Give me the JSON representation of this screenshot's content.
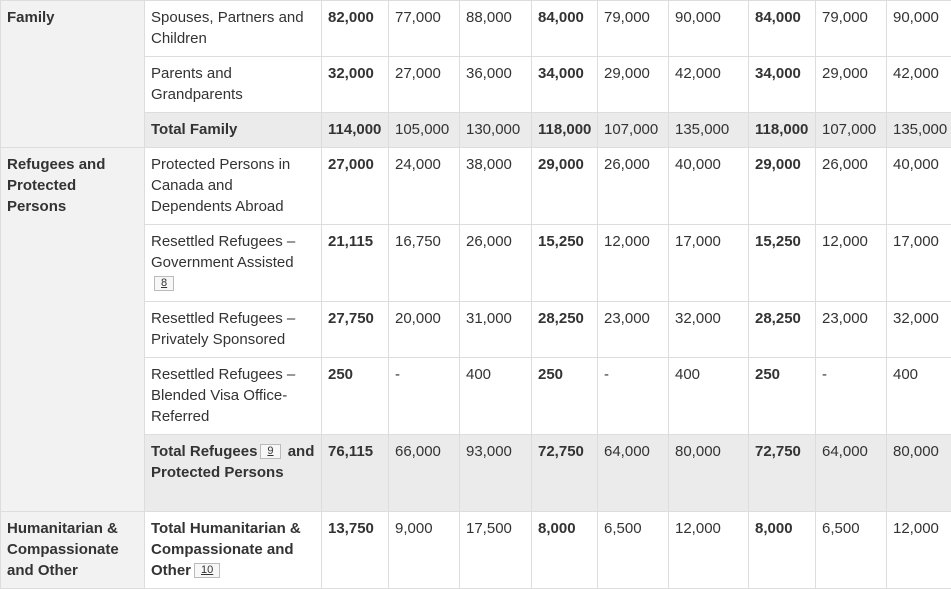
{
  "categories": {
    "family": "Family",
    "refugees": "Refugees and Protected Persons",
    "humanitarian": "Humanitarian & Compassionate and Other"
  },
  "rows": [
    {
      "label": "Spouses, Partners and Children",
      "values": [
        "82,000",
        "77,000",
        "88,000",
        "84,000",
        "79,000",
        "90,000",
        "84,000",
        "79,000",
        "90,000"
      ]
    },
    {
      "label": "Parents and Grandparents",
      "values": [
        "32,000",
        "27,000",
        "36,000",
        "34,000",
        "29,000",
        "42,000",
        "34,000",
        "29,000",
        "42,000"
      ]
    },
    {
      "label": "Total Family",
      "values": [
        "114,000",
        "105,000",
        "130,000",
        "118,000",
        "107,000",
        "135,000",
        "118,000",
        "107,000",
        "135,000"
      ]
    },
    {
      "label": "Protected Persons in Canada and Dependents Abroad",
      "values": [
        "27,000",
        "24,000",
        "38,000",
        "29,000",
        "26,000",
        "40,000",
        "29,000",
        "26,000",
        "40,000"
      ]
    },
    {
      "label": "Resettled Refugees – Government Assisted",
      "footnote": "8",
      "values": [
        "21,115",
        "16,750",
        "26,000",
        "15,250",
        "12,000",
        "17,000",
        "15,250",
        "12,000",
        "17,000"
      ]
    },
    {
      "label": "Resettled Refugees – Privately Sponsored",
      "values": [
        "27,750",
        "20,000",
        "31,000",
        "28,250",
        "23,000",
        "32,000",
        "28,250",
        "23,000",
        "32,000"
      ]
    },
    {
      "label": "Resettled Refugees – Blended Visa Office-Referred",
      "values": [
        "250",
        "-",
        "400",
        "250",
        "-",
        "400",
        "250",
        "-",
        "400"
      ]
    },
    {
      "label_part1": "Total Refugees",
      "footnote": "9",
      "label_part2": "and Protected Persons",
      "values": [
        "76,115",
        "66,000",
        "93,000",
        "72,750",
        "64,000",
        "80,000",
        "72,750",
        "64,000",
        "80,000"
      ]
    },
    {
      "label": "Total Humanitarian & Compassionate and Other",
      "footnote": "10",
      "values": [
        "13,750",
        "9,000",
        "17,500",
        "8,000",
        "6,500",
        "12,000",
        "8,000",
        "6,500",
        "12,000"
      ]
    }
  ]
}
